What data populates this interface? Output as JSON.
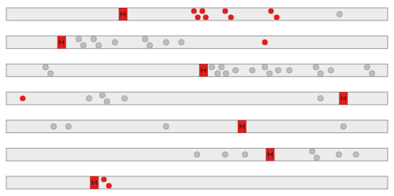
{
  "chart_data": [
    {
      "type": "strip",
      "xlim": [
        0,
        100
      ],
      "tick_labels": false,
      "cursor": 30.6,
      "series": [
        {
          "color": "#e01e1e",
          "values": [
            49.2,
            50.2,
            51.4,
            52.3,
            57.4,
            58.9,
            69.4,
            70.9
          ]
        },
        {
          "color": "#bdbdbd",
          "values": [
            87.4
          ]
        }
      ]
    },
    {
      "type": "strip",
      "xlim": [
        0,
        100
      ],
      "tick_labels": false,
      "cursor": 14.5,
      "series": [
        {
          "color": "#e01e1e",
          "values": [
            67.8
          ]
        },
        {
          "color": "#bdbdbd",
          "values": [
            19.0,
            20.2,
            22.9,
            24.2,
            28.5,
            36.4,
            37.6,
            41.9,
            45.9
          ]
        }
      ]
    },
    {
      "type": "strip",
      "xlim": [
        0,
        100
      ],
      "tick_labels": false,
      "cursor": 51.7,
      "series": [
        {
          "color": "#e01e1e",
          "values": []
        },
        {
          "color": "#bdbdbd",
          "values": [
            10.3,
            11.6,
            53.9,
            55.4,
            56.4,
            57.6,
            60.1,
            64.5,
            67.8,
            69.0,
            71.3,
            74.2,
            81.2,
            82.4,
            85.1,
            94.6,
            95.9
          ]
        }
      ]
    },
    {
      "type": "strip",
      "xlim": [
        0,
        100
      ],
      "tick_labels": false,
      "cursor": 88.4,
      "series": [
        {
          "color": "#e01e1e",
          "values": [
            4.3
          ]
        },
        {
          "color": "#bdbdbd",
          "values": [
            21.7,
            25.2,
            26.4,
            31.0,
            82.4
          ]
        }
      ]
    },
    {
      "type": "strip",
      "xlim": [
        0,
        100
      ],
      "tick_labels": false,
      "cursor": 61.8,
      "series": [
        {
          "color": "#e01e1e",
          "values": []
        },
        {
          "color": "#bdbdbd",
          "values": [
            12.4,
            16.3,
            41.9,
            88.4
          ]
        }
      ]
    },
    {
      "type": "strip",
      "xlim": [
        0,
        100
      ],
      "tick_labels": false,
      "cursor": 69.2,
      "series": [
        {
          "color": "#e01e1e",
          "values": []
        },
        {
          "color": "#bdbdbd",
          "values": [
            50.0,
            57.4,
            62.6,
            80.2,
            81.4,
            87.2,
            91.7
          ]
        }
      ]
    },
    {
      "type": "strip",
      "xlim": [
        0,
        100
      ],
      "tick_labels": false,
      "cursor": 23.1,
      "series": [
        {
          "color": "#e01e1e",
          "values": [
            25.6,
            26.9
          ]
        },
        {
          "color": "#bdbdbd",
          "values": []
        }
      ]
    }
  ]
}
